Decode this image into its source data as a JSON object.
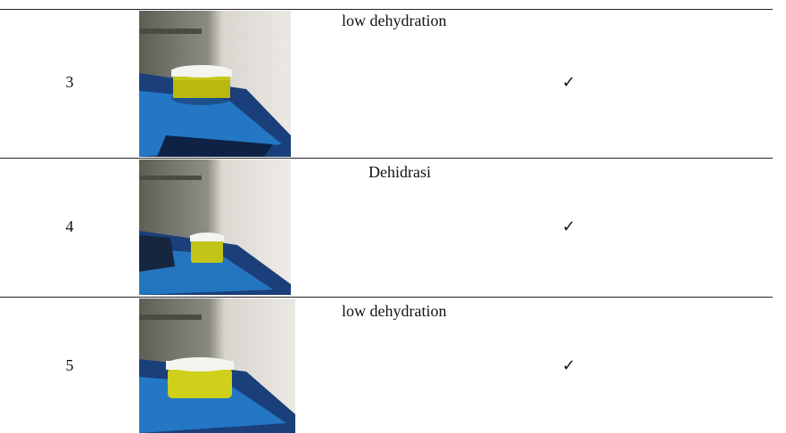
{
  "table": {
    "rows": [
      {
        "number": "3",
        "label": "low dehydration",
        "check": "✓"
      },
      {
        "number": "4",
        "label": "Dehidrasi",
        "check": "✓"
      },
      {
        "number": "5",
        "label": "low dehydration",
        "check": "✓"
      }
    ]
  }
}
